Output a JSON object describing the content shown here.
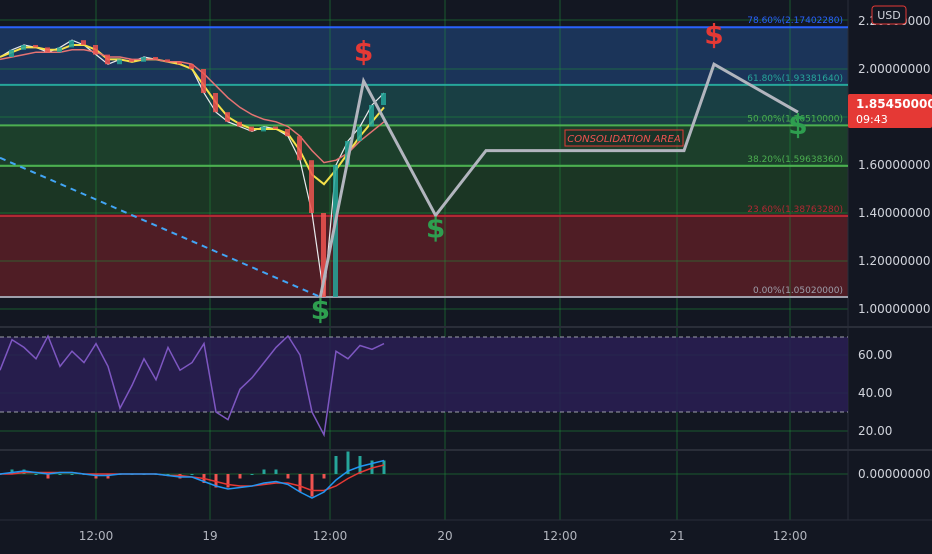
{
  "currency": "USD",
  "current_price": {
    "value": "1.85450000",
    "countdown": "09:43"
  },
  "annotation": "CONSOLIDATION AREA",
  "colors": {
    "background": "#131722",
    "grid": "#1f8f3a",
    "fib_blue": "#2962ff",
    "fib_green": "#4caf50",
    "fib_red": "#b22833",
    "buy": "#2e9e4f",
    "sell": "#e53935",
    "path": "#b2b5be",
    "rsi": "#7e57c2",
    "macd_line": "#2196f3",
    "macd_signal": "#e53935"
  },
  "symbols": {
    "buy": "$",
    "sell": "$"
  },
  "chart_data": [
    {
      "type": "candlestick",
      "panel": "price",
      "y_axis": {
        "ticks": [
          "1.00000000",
          "1.20000000",
          "1.40000000",
          "1.60000000",
          "1.80000000",
          "2.00000000",
          "2.20000000"
        ],
        "ylim": [
          0.95,
          2.25
        ]
      },
      "x_axis": {
        "ticks": [
          "12:00",
          "19",
          "12:00",
          "20",
          "12:00",
          "21",
          "12:00"
        ]
      },
      "fib_levels": [
        {
          "label": "78.60%(2.17402280)",
          "value": 2.1740228
        },
        {
          "label": "61.80%(1.93381640)",
          "value": 1.9338164
        },
        {
          "label": "50.00%(1.76510000)",
          "value": 1.7651
        },
        {
          "label": "38.20%(1.59638360)",
          "value": 1.5963836
        },
        {
          "label": "23.60%(1.38763280)",
          "value": 1.3876328
        },
        {
          "label": "0.00%(1.05020000)",
          "value": 1.0502
        }
      ],
      "price_series": [
        {
          "name": "Price",
          "values": [
            2.05,
            2.08,
            2.1,
            2.09,
            2.07,
            2.09,
            2.12,
            2.1,
            2.06,
            2.02,
            2.04,
            2.03,
            2.05,
            2.04,
            2.03,
            2.02,
            2.0,
            1.9,
            1.82,
            1.78,
            1.76,
            1.74,
            1.76,
            1.75,
            1.72,
            1.62,
            1.4,
            1.05,
            1.6,
            1.7,
            1.76,
            1.85,
            1.9
          ]
        },
        {
          "name": "MA fast",
          "values": [
            2.05,
            2.07,
            2.09,
            2.09,
            2.08,
            2.08,
            2.1,
            2.1,
            2.08,
            2.04,
            2.04,
            2.03,
            2.04,
            2.04,
            2.03,
            2.02,
            2.0,
            1.93,
            1.86,
            1.8,
            1.77,
            1.75,
            1.75,
            1.75,
            1.73,
            1.66,
            1.56,
            1.52,
            1.58,
            1.65,
            1.72,
            1.78,
            1.84
          ]
        },
        {
          "name": "MA slow",
          "values": [
            2.04,
            2.05,
            2.06,
            2.07,
            2.07,
            2.07,
            2.08,
            2.08,
            2.07,
            2.05,
            2.05,
            2.04,
            2.04,
            2.04,
            2.03,
            2.03,
            2.02,
            1.98,
            1.93,
            1.88,
            1.84,
            1.81,
            1.79,
            1.78,
            1.76,
            1.72,
            1.66,
            1.61,
            1.62,
            1.65,
            1.7,
            1.74,
            1.78
          ]
        }
      ],
      "trendline": {
        "from": {
          "x": 0,
          "y": 1.63
        },
        "to": {
          "x": 26.7,
          "y": 1.05
        }
      },
      "projection_path": [
        {
          "x": 26.7,
          "y": 1.05
        },
        {
          "x": 30.3,
          "y": 1.95
        },
        {
          "x": 36.3,
          "y": 1.39
        },
        {
          "x": 40.5,
          "y": 1.66
        },
        {
          "x": 57.0,
          "y": 1.66
        },
        {
          "x": 59.5,
          "y": 2.02
        },
        {
          "x": 66.5,
          "y": 1.82
        }
      ],
      "markers": [
        {
          "type": "buy",
          "x": 26.7,
          "y": 1.05
        },
        {
          "type": "sell",
          "x": 30.3,
          "y": 1.95
        },
        {
          "type": "buy",
          "x": 36.3,
          "y": 1.39
        },
        {
          "type": "sell",
          "x": 59.5,
          "y": 2.02
        },
        {
          "type": "buy",
          "x": 66.5,
          "y": 1.82
        }
      ]
    },
    {
      "type": "line",
      "panel": "rsi",
      "series": [
        {
          "name": "RSI",
          "values": [
            52,
            68,
            64,
            58,
            70,
            54,
            62,
            56,
            66,
            54,
            32,
            44,
            58,
            47,
            64,
            52,
            56,
            66,
            30,
            26,
            42,
            48,
            56,
            64,
            70,
            60,
            30,
            18,
            62,
            58,
            65,
            63,
            66
          ]
        }
      ],
      "y_axis": {
        "ticks": [
          "20.00",
          "40.00",
          "60.00"
        ],
        "ylim": [
          5,
          80
        ]
      },
      "bands": [
        70,
        30
      ]
    },
    {
      "type": "line",
      "panel": "macd",
      "series": [
        {
          "name": "MACD",
          "values": [
            0.0,
            0.01,
            0.02,
            0.01,
            0.0,
            0.01,
            0.01,
            0.0,
            -0.01,
            -0.01,
            0.0,
            0.0,
            0.0,
            0.0,
            -0.01,
            -0.02,
            -0.02,
            -0.05,
            -0.08,
            -0.1,
            -0.09,
            -0.08,
            -0.06,
            -0.05,
            -0.07,
            -0.12,
            -0.16,
            -0.12,
            -0.04,
            0.02,
            0.05,
            0.07,
            0.09
          ]
        },
        {
          "name": "Signal",
          "values": [
            0.0,
            0.0,
            0.01,
            0.01,
            0.01,
            0.01,
            0.01,
            0.0,
            0.0,
            0.0,
            0.0,
            0.0,
            0.0,
            0.0,
            -0.01,
            -0.01,
            -0.02,
            -0.03,
            -0.05,
            -0.07,
            -0.08,
            -0.08,
            -0.07,
            -0.06,
            -0.06,
            -0.08,
            -0.11,
            -0.11,
            -0.08,
            -0.03,
            0.01,
            0.04,
            0.06
          ]
        }
      ],
      "y_axis": {
        "ticks": [
          "0.00000000"
        ],
        "ylim": [
          -0.22,
          0.15
        ]
      }
    }
  ]
}
